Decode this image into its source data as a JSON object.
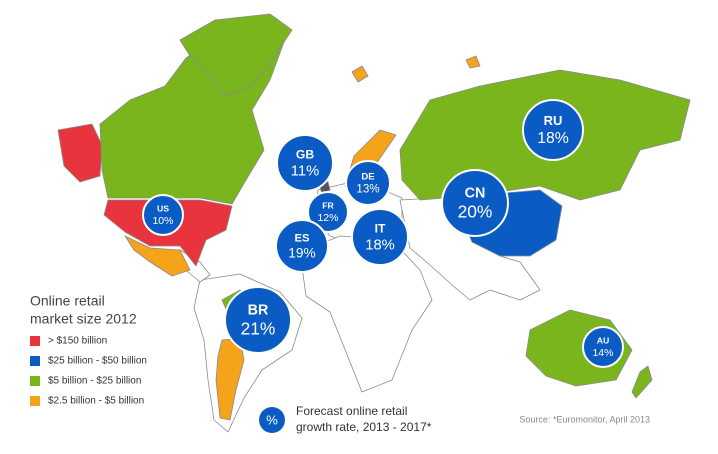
{
  "legend_title": [
    "Online retail",
    "market size 2012"
  ],
  "legend": [
    {
      "label": "> $150 billion",
      "color": "#e8343c"
    },
    {
      "label": "$25 billion - $50 billion",
      "color": "#0a5bc4"
    },
    {
      "label": "$5 billion - $25 billion",
      "color": "#7ab51d"
    },
    {
      "label": "$2.5 billion - $5 billion",
      "color": "#f5a31a"
    }
  ],
  "bubbles": [
    {
      "code": "US",
      "label": "10%"
    },
    {
      "code": "GB",
      "label": "11%"
    },
    {
      "code": "DE",
      "label": "13%"
    },
    {
      "code": "FR",
      "label": "12%"
    },
    {
      "code": "ES",
      "label": "19%"
    },
    {
      "code": "IT",
      "label": "18%"
    },
    {
      "code": "CN",
      "label": "20%"
    },
    {
      "code": "RU",
      "label": "18%"
    },
    {
      "code": "BR",
      "label": "21%"
    },
    {
      "code": "AU",
      "label": "14%"
    }
  ],
  "key_symbol": "%",
  "key_text": [
    "Forecast online retail",
    "growth rate, 2013 - 2017*"
  ],
  "source": "Source: *Euromonitor, April 2013"
}
